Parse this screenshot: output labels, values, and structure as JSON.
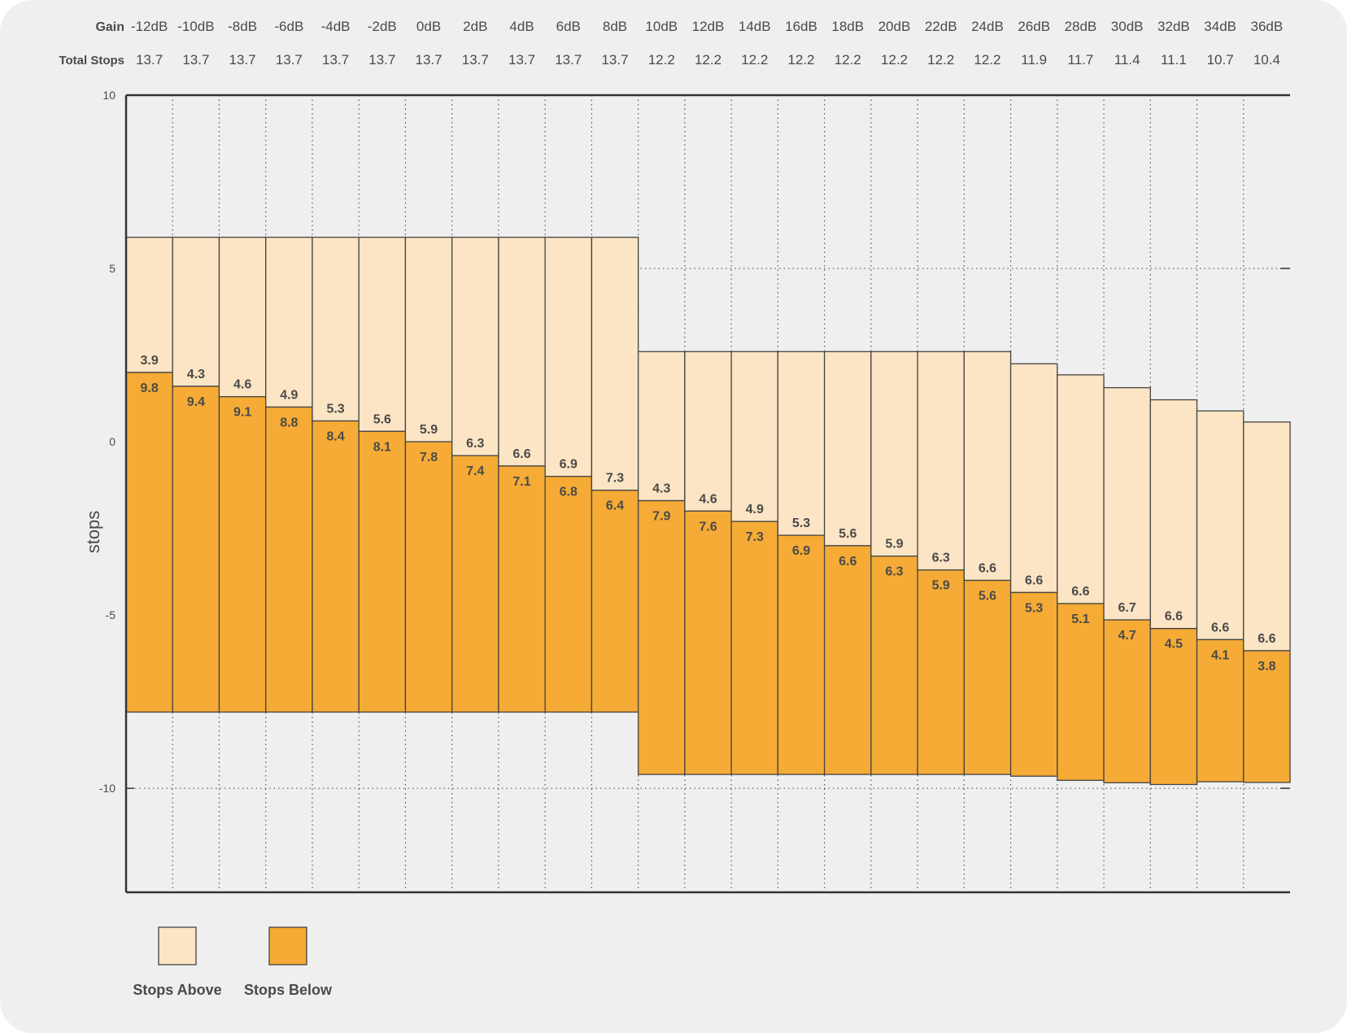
{
  "chart_data": {
    "type": "bar",
    "subtype": "floating-stacked",
    "row_labels": {
      "gain": "Gain",
      "total": "Total Stops"
    },
    "categories": [
      "-12dB",
      "-10dB",
      "-8dB",
      "-6dB",
      "-4dB",
      "-2dB",
      "0dB",
      "2dB",
      "4dB",
      "6dB",
      "8dB",
      "10dB",
      "12dB",
      "14dB",
      "16dB",
      "18dB",
      "20dB",
      "22dB",
      "24dB",
      "26dB",
      "28dB",
      "30dB",
      "32dB",
      "34dB",
      "36dB"
    ],
    "total_stops": [
      "13.7",
      "13.7",
      "13.7",
      "13.7",
      "13.7",
      "13.7",
      "13.7",
      "13.7",
      "13.7",
      "13.7",
      "13.7",
      "12.2",
      "12.2",
      "12.2",
      "12.2",
      "12.2",
      "12.2",
      "12.2",
      "12.2",
      "11.9",
      "11.7",
      "11.4",
      "11.1",
      "10.7",
      "10.4"
    ],
    "top": [
      5.9,
      5.9,
      5.9,
      5.9,
      5.9,
      5.9,
      5.9,
      5.9,
      5.9,
      5.9,
      5.9,
      2.6,
      2.6,
      2.6,
      2.6,
      2.6,
      2.6,
      2.6,
      2.6,
      2.25,
      1.93,
      1.56,
      1.21,
      0.89,
      0.57
    ],
    "series": [
      {
        "name": "Stops Above",
        "color": "#fce5c4",
        "values": [
          3.9,
          4.3,
          4.6,
          4.9,
          5.3,
          5.6,
          5.9,
          6.3,
          6.6,
          6.9,
          7.3,
          4.3,
          4.6,
          4.9,
          5.3,
          5.6,
          5.9,
          6.3,
          6.6,
          6.6,
          6.6,
          6.7,
          6.6,
          6.6,
          6.6
        ]
      },
      {
        "name": "Stops Below",
        "color": "#f5ab35",
        "values": [
          9.8,
          9.4,
          9.1,
          8.8,
          8.4,
          8.1,
          7.8,
          7.4,
          7.1,
          6.8,
          6.4,
          7.9,
          7.6,
          7.3,
          6.9,
          6.6,
          6.3,
          5.9,
          5.6,
          5.3,
          5.1,
          4.7,
          4.5,
          4.1,
          3.8
        ]
      }
    ],
    "ylabel": "stops",
    "ylim": [
      -13,
      10
    ],
    "yticks": [
      10,
      5,
      0,
      -5,
      -10
    ],
    "grid": true,
    "legend_position": "bottom-left"
  }
}
